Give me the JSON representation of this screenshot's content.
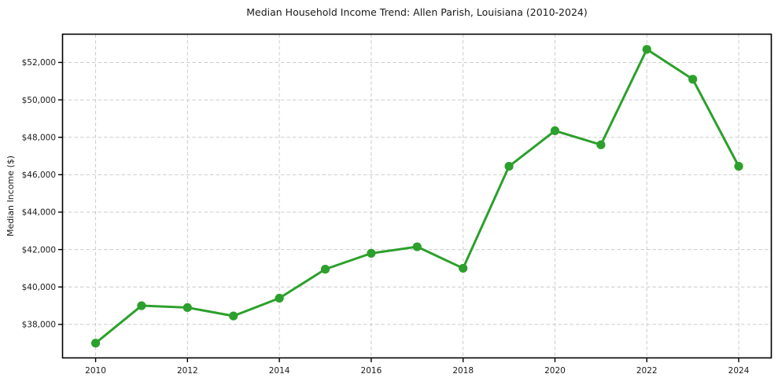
{
  "page": {
    "background": "#ffffff"
  },
  "chart_data": {
    "type": "line",
    "title": "Median Household Income Trend: Allen Parish, Louisiana (2010-2024)",
    "xlabel": "",
    "ylabel": "Median Income ($)",
    "series": [
      {
        "name": "Median Household Income",
        "x": [
          2010,
          2011,
          2012,
          2013,
          2014,
          2015,
          2016,
          2017,
          2018,
          2019,
          2020,
          2021,
          2022,
          2023,
          2024
        ],
        "y": [
          37000,
          39000,
          38900,
          38450,
          39400,
          40950,
          41800,
          42150,
          41000,
          46450,
          48350,
          47600,
          52700,
          51100,
          46450
        ]
      }
    ],
    "x_ticks": [
      2010,
      2012,
      2014,
      2016,
      2018,
      2020,
      2022,
      2024
    ],
    "x_tick_labels": [
      "2010",
      "2012",
      "2014",
      "2016",
      "2018",
      "2020",
      "2022",
      "2024"
    ],
    "y_ticks": [
      38000,
      40000,
      42000,
      44000,
      46000,
      48000,
      50000,
      52000
    ],
    "y_tick_labels": [
      "$38,000",
      "$40,000",
      "$42,000",
      "$44,000",
      "$46,000",
      "$48,000",
      "$50,000",
      "$52,000"
    ],
    "xlim": [
      2009.28,
      2024.71
    ],
    "ylim": [
      36210,
      53510
    ],
    "grid": true,
    "grid_style": "dashed",
    "legend": false,
    "marker": "circle",
    "colors": {
      "line": "#2ca02c",
      "marker": "#2ca02c",
      "grid": "#cccccc",
      "spine": "#000000",
      "text": "#1a1a1a",
      "background": "#ffffff"
    }
  }
}
